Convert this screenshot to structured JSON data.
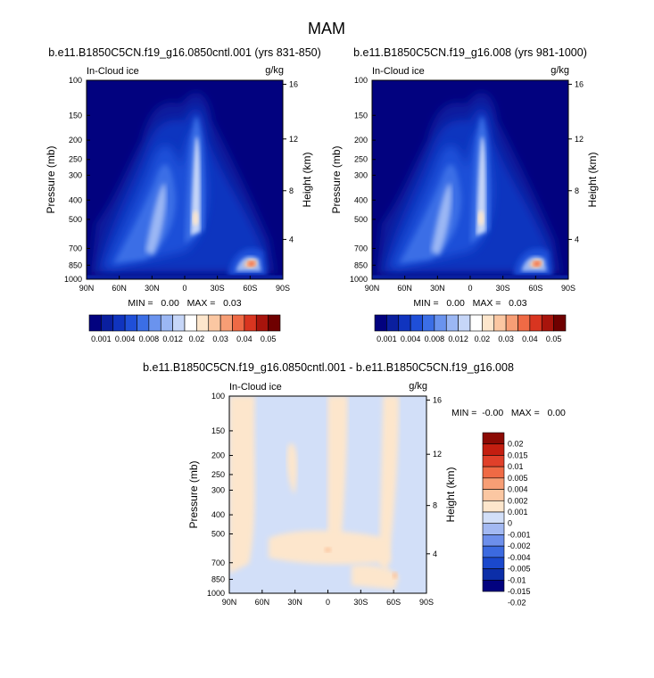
{
  "page": {
    "title": "MAM"
  },
  "colors": {
    "abs_scale": [
      "#02027f",
      "#0a1f9f",
      "#1034bf",
      "#1f4fd8",
      "#3b6ee6",
      "#6a93ee",
      "#9bb7f4",
      "#c6d6f8",
      "#ffffff",
      "#fde6cc",
      "#fbc7a2",
      "#f79e75",
      "#ef6a45",
      "#d93520",
      "#a8140c",
      "#6f0000"
    ],
    "diff_scale": [
      "#02027f",
      "#0c2ea8",
      "#1a48cc",
      "#3c6ae0",
      "#6d8feb",
      "#a3b9f2",
      "#d2dff8",
      "#fde6cc",
      "#fbc7a2",
      "#f79e75",
      "#ef6a45",
      "#e0402a",
      "#c41e10",
      "#8c0a04"
    ]
  },
  "panels": [
    {
      "id": "panel-left",
      "title": "b.e11.B1850C5CN.f19_g16.0850cntl.001 (yrs 831-850)",
      "variable": "In-Cloud ice",
      "units": "g/kg",
      "minmax": "MIN =   0.00   MAX =   0.03"
    },
    {
      "id": "panel-right",
      "title": "b.e11.B1850C5CN.f19_g16.008 (yrs 981-1000)",
      "variable": "In-Cloud ice",
      "units": "g/kg",
      "minmax": "MIN =   0.00   MAX =   0.03"
    },
    {
      "id": "panel-diff",
      "title": "b.e11.B1850C5CN.f19_g16.0850cntl.001 - b.e11.B1850C5CN.f19_g16.008",
      "variable": "In-Cloud ice",
      "units": "g/kg",
      "minmax": "MIN =  -0.00   MAX =   0.00"
    }
  ],
  "chart_data": [
    {
      "type": "heatmap",
      "title": "b.e11.B1850C5CN.f19_g16.0850cntl.001 (yrs 831-850)",
      "variable": "In-Cloud ice",
      "units": "g/kg",
      "xlabel": "",
      "ylabel": "Pressure (mb)",
      "y2label": "Height (km)",
      "x_ticks": [
        "90N",
        "60N",
        "30N",
        "0",
        "30S",
        "60S",
        "90S"
      ],
      "x_tick_lat": [
        90,
        60,
        30,
        0,
        -30,
        -60,
        -90
      ],
      "y_ticks": [
        100,
        150,
        200,
        250,
        300,
        400,
        500,
        700,
        850,
        1000
      ],
      "y2_ticks": [
        16,
        12,
        8,
        4
      ],
      "colorbar_labels": [
        "0.001",
        "0.004",
        "0.008",
        "0.012",
        "0.02",
        "0.03",
        "0.04",
        "0.05"
      ],
      "min": 0.0,
      "max": 0.03
    },
    {
      "type": "heatmap",
      "title": "b.e11.B1850C5CN.f19_g16.008 (yrs 981-1000)",
      "variable": "In-Cloud ice",
      "units": "g/kg",
      "xlabel": "",
      "ylabel": "Pressure (mb)",
      "y2label": "Height (km)",
      "x_ticks": [
        "90N",
        "60N",
        "30N",
        "0",
        "30S",
        "60S",
        "90S"
      ],
      "x_tick_lat": [
        90,
        60,
        30,
        0,
        -30,
        -60,
        -90
      ],
      "y_ticks": [
        100,
        150,
        200,
        250,
        300,
        400,
        500,
        700,
        850,
        1000
      ],
      "y2_ticks": [
        16,
        12,
        8,
        4
      ],
      "colorbar_labels": [
        "0.001",
        "0.004",
        "0.008",
        "0.012",
        "0.02",
        "0.03",
        "0.04",
        "0.05"
      ],
      "min": 0.0,
      "max": 0.03
    },
    {
      "type": "heatmap",
      "title": "b.e11.B1850C5CN.f19_g16.0850cntl.001 - b.e11.B1850C5CN.f19_g16.008",
      "variable": "In-Cloud ice",
      "units": "g/kg",
      "xlabel": "",
      "ylabel": "Pressure (mb)",
      "y2label": "Height (km)",
      "x_ticks": [
        "90N",
        "60N",
        "30N",
        "0",
        "30S",
        "60S",
        "90S"
      ],
      "x_tick_lat": [
        90,
        60,
        30,
        0,
        -30,
        -60,
        -90
      ],
      "y_ticks": [
        100,
        150,
        200,
        250,
        300,
        400,
        500,
        700,
        850,
        1000
      ],
      "y2_ticks": [
        16,
        12,
        8,
        4
      ],
      "colorbar_labels": [
        "0.02",
        "0.015",
        "0.01",
        "0.005",
        "0.004",
        "0.002",
        "0.001",
        "0",
        "-0.001",
        "-0.002",
        "-0.004",
        "-0.005",
        "-0.01",
        "-0.015",
        "-0.02"
      ],
      "min": -0.0,
      "max": 0.0
    }
  ]
}
